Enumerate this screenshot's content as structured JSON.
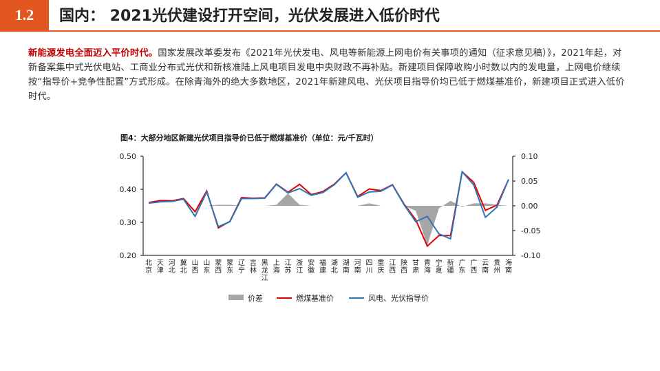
{
  "header": {
    "section_num": "1.2",
    "title": "国内： 2021光伏建设打开空间，光伏发展进入低价时代"
  },
  "paragraph": {
    "lead": "新能源发电全面迈入平价时代。",
    "body": "国家发展改革委发布《2021年光伏发电、风电等新能源上网电价有关事项的通知（征求意见稿）》，2021年起，对新备案集中式光伏电站、工商业分布式光伏和新核准陆上风电项目发电中央财政不再补贴。新建项目保障收购小时数以内的发电量，上网电价继续按“指导价+竞争性配置”方式形成。在除青海外的绝大多数地区，2021年新建风电、光伏项目指导价均已低于燃煤基准价，新建项目正式进入低价时代。"
  },
  "chart_data": {
    "type": "line",
    "title": "图4：大部分地区新建光伏项目指导价已低于燃煤基准价（单位：元/千瓦时）",
    "categories": [
      "北京",
      "天津",
      "河北",
      "冀北",
      "山西",
      "山东",
      "蒙西",
      "蒙东",
      "辽宁",
      "吉林",
      "黑龙江",
      "上海",
      "江苏",
      "浙江",
      "安徽",
      "福建",
      "湖北",
      "湖南",
      "河南",
      "四川",
      "重庆",
      "江西",
      "陕西",
      "甘肃",
      "青海",
      "宁夏",
      "新疆",
      "广东",
      "广西",
      "云南",
      "贵州",
      "海南"
    ],
    "yleft": {
      "min": 0.2,
      "max": 0.5,
      "ticks": [
        "0.20",
        "0.30",
        "0.40",
        "0.50"
      ]
    },
    "yright": {
      "min": -0.1,
      "max": 0.1,
      "ticks": [
        "-0.10",
        "-0.05",
        "0.00",
        "0.05",
        "0.10"
      ]
    },
    "series": [
      {
        "name": "价差",
        "kind": "area",
        "axis": "right",
        "color": "#a6a6a6",
        "values": [
          0,
          0,
          0,
          0,
          0,
          0,
          0.002,
          0.002,
          0,
          0,
          0,
          0.002,
          0.025,
          0.002,
          0,
          0,
          0,
          0,
          0,
          0.005,
          0,
          0,
          0,
          -0.01,
          -0.08,
          -0.005,
          0.01,
          -0.002,
          0.005,
          0.005,
          0.002,
          0
        ]
      },
      {
        "name": "燃煤基准价",
        "kind": "line",
        "axis": "left",
        "color": "#e00000",
        "values": [
          0.36,
          0.366,
          0.365,
          0.372,
          0.332,
          0.395,
          0.283,
          0.303,
          0.375,
          0.373,
          0.374,
          0.416,
          0.391,
          0.415,
          0.384,
          0.393,
          0.416,
          0.45,
          0.378,
          0.401,
          0.396,
          0.414,
          0.355,
          0.308,
          0.228,
          0.26,
          0.26,
          0.453,
          0.421,
          0.336,
          0.352,
          0.43
        ]
      },
      {
        "name": "风电、光伏指导价",
        "kind": "line",
        "axis": "left",
        "color": "#2e75b6",
        "values": [
          0.358,
          0.362,
          0.363,
          0.37,
          0.318,
          0.392,
          0.287,
          0.302,
          0.372,
          0.372,
          0.373,
          0.415,
          0.389,
          0.402,
          0.382,
          0.39,
          0.414,
          0.45,
          0.376,
          0.392,
          0.394,
          0.413,
          0.353,
          0.302,
          0.318,
          0.265,
          0.25,
          0.453,
          0.413,
          0.315,
          0.346,
          0.43
        ]
      }
    ],
    "legend_position": "bottom"
  }
}
